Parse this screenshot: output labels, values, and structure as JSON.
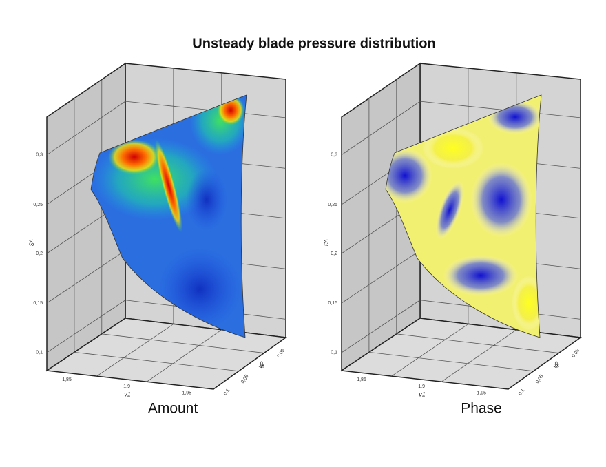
{
  "title": "Unsteady blade pressure distribution",
  "panels": [
    {
      "label": "Amount",
      "axes": {
        "y": {
          "label": "v3",
          "ticks": [
            "0,3",
            "0,25",
            "0,2",
            "0,15",
            "0,1"
          ]
        },
        "x": {
          "label": "v1",
          "ticks": [
            "1,85",
            "1,9",
            "1,95"
          ]
        },
        "z": {
          "label": "v2",
          "ticks": [
            "0,05",
            "0",
            "0,05",
            "0,1"
          ]
        }
      }
    },
    {
      "label": "Phase",
      "axes": {
        "y": {
          "label": "v3",
          "ticks": [
            "0,3",
            "0,25",
            "0,2",
            "0,15",
            "0,1"
          ]
        },
        "x": {
          "label": "v1",
          "ticks": [
            "1,85",
            "1,9",
            "1,95"
          ]
        },
        "z": {
          "label": "v2",
          "ticks": [
            "0,05",
            "0",
            "0,05",
            "0,1"
          ]
        }
      }
    }
  ]
}
